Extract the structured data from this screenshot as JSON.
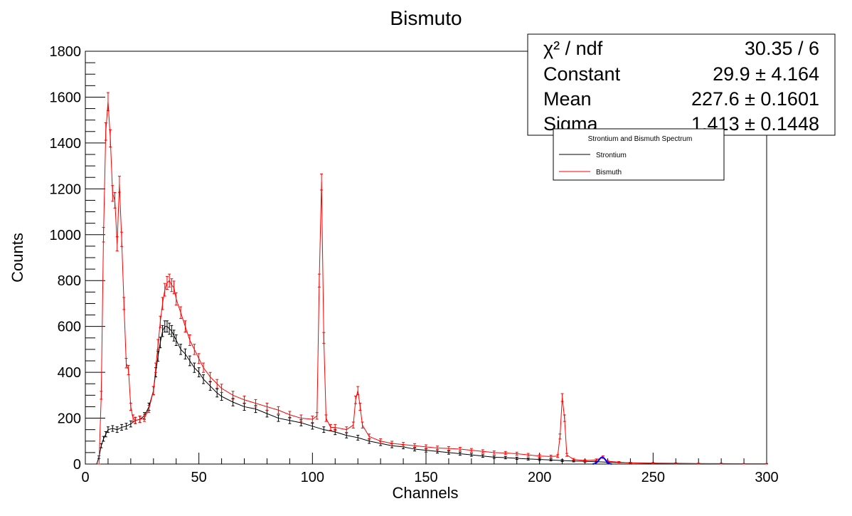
{
  "chart_data": {
    "type": "line",
    "title": "Bismuto",
    "xlabel": "Channels",
    "ylabel": "Counts",
    "xlim": [
      0,
      300
    ],
    "ylim": [
      0,
      1800
    ],
    "x_ticks": [
      "0",
      "50",
      "100",
      "150",
      "200",
      "250",
      "300"
    ],
    "y_ticks": [
      "0",
      "200",
      "400",
      "600",
      "800",
      "1000",
      "1200",
      "1400",
      "1600",
      "1800"
    ],
    "grid": false,
    "legend": {
      "title": "Strontium and Bismuth Spectrum",
      "position": "top-right",
      "entries": [
        {
          "label": "Strontium",
          "color": "#000000"
        },
        {
          "label": "Bismuth",
          "color": "#ff0000"
        }
      ]
    },
    "stats": {
      "rows": [
        {
          "label": "χ² / ndf",
          "value": "30.35 / 6"
        },
        {
          "label": "Constant",
          "value": "29.9 ± 4.164"
        },
        {
          "label": "Mean",
          "value": "227.6 ± 0.1601"
        },
        {
          "label": "Sigma",
          "value": "1.413 ± 0.1448"
        }
      ]
    },
    "series": [
      {
        "name": "Strontium",
        "color": "#000000",
        "points": [
          [
            5,
            0
          ],
          [
            6,
            30
          ],
          [
            7,
            80
          ],
          [
            8,
            110
          ],
          [
            9,
            130
          ],
          [
            10,
            150
          ],
          [
            12,
            155
          ],
          [
            14,
            150
          ],
          [
            16,
            160
          ],
          [
            18,
            165
          ],
          [
            20,
            175
          ],
          [
            22,
            190
          ],
          [
            24,
            195
          ],
          [
            26,
            210
          ],
          [
            28,
            250
          ],
          [
            30,
            320
          ],
          [
            31,
            400
          ],
          [
            32,
            470
          ],
          [
            33,
            530
          ],
          [
            34,
            580
          ],
          [
            35,
            600
          ],
          [
            36,
            600
          ],
          [
            37,
            590
          ],
          [
            38,
            580
          ],
          [
            39,
            560
          ],
          [
            40,
            540
          ],
          [
            42,
            500
          ],
          [
            44,
            480
          ],
          [
            46,
            450
          ],
          [
            48,
            420
          ],
          [
            50,
            400
          ],
          [
            52,
            370
          ],
          [
            55,
            340
          ],
          [
            58,
            310
          ],
          [
            60,
            295
          ],
          [
            65,
            270
          ],
          [
            70,
            250
          ],
          [
            75,
            240
          ],
          [
            80,
            220
          ],
          [
            85,
            200
          ],
          [
            90,
            190
          ],
          [
            95,
            180
          ],
          [
            100,
            165
          ],
          [
            105,
            150
          ],
          [
            110,
            140
          ],
          [
            115,
            125
          ],
          [
            120,
            115
          ],
          [
            125,
            100
          ],
          [
            130,
            90
          ],
          [
            135,
            80
          ],
          [
            140,
            75
          ],
          [
            145,
            65
          ],
          [
            150,
            60
          ],
          [
            155,
            55
          ],
          [
            160,
            50
          ],
          [
            165,
            45
          ],
          [
            170,
            40
          ],
          [
            175,
            35
          ],
          [
            180,
            30
          ],
          [
            185,
            28
          ],
          [
            190,
            25
          ],
          [
            195,
            22
          ],
          [
            200,
            20
          ],
          [
            205,
            18
          ],
          [
            210,
            15
          ],
          [
            215,
            13
          ],
          [
            220,
            12
          ],
          [
            225,
            10
          ],
          [
            230,
            8
          ],
          [
            240,
            5
          ],
          [
            250,
            4
          ],
          [
            260,
            3
          ],
          [
            270,
            2
          ],
          [
            280,
            2
          ],
          [
            290,
            1
          ],
          [
            300,
            1
          ]
        ]
      },
      {
        "name": "Bismuth",
        "color": "#ff0000",
        "points": [
          [
            6,
            0
          ],
          [
            7,
            300
          ],
          [
            8,
            1000
          ],
          [
            9,
            1450
          ],
          [
            10,
            1580
          ],
          [
            11,
            1420
          ],
          [
            12,
            1180
          ],
          [
            13,
            1150
          ],
          [
            14,
            960
          ],
          [
            15,
            1220
          ],
          [
            16,
            980
          ],
          [
            17,
            700
          ],
          [
            18,
            440
          ],
          [
            19,
            410
          ],
          [
            20,
            250
          ],
          [
            21,
            200
          ],
          [
            22,
            190
          ],
          [
            24,
            195
          ],
          [
            26,
            200
          ],
          [
            28,
            240
          ],
          [
            30,
            320
          ],
          [
            31,
            420
          ],
          [
            32,
            520
          ],
          [
            33,
            620
          ],
          [
            34,
            700
          ],
          [
            35,
            760
          ],
          [
            36,
            790
          ],
          [
            37,
            800
          ],
          [
            38,
            780
          ],
          [
            39,
            770
          ],
          [
            40,
            720
          ],
          [
            42,
            660
          ],
          [
            44,
            600
          ],
          [
            46,
            540
          ],
          [
            48,
            500
          ],
          [
            50,
            460
          ],
          [
            52,
            420
          ],
          [
            55,
            380
          ],
          [
            58,
            350
          ],
          [
            60,
            330
          ],
          [
            65,
            300
          ],
          [
            70,
            280
          ],
          [
            75,
            265
          ],
          [
            80,
            250
          ],
          [
            85,
            235
          ],
          [
            90,
            215
          ],
          [
            95,
            200
          ],
          [
            100,
            195
          ],
          [
            102,
            210
          ],
          [
            103,
            800
          ],
          [
            104,
            1230
          ],
          [
            105,
            550
          ],
          [
            106,
            200
          ],
          [
            108,
            160
          ],
          [
            110,
            160
          ],
          [
            115,
            150
          ],
          [
            118,
            170
          ],
          [
            119,
            280
          ],
          [
            120,
            320
          ],
          [
            121,
            250
          ],
          [
            122,
            170
          ],
          [
            125,
            120
          ],
          [
            130,
            100
          ],
          [
            135,
            90
          ],
          [
            140,
            85
          ],
          [
            145,
            80
          ],
          [
            150,
            75
          ],
          [
            155,
            70
          ],
          [
            160,
            68
          ],
          [
            165,
            65
          ],
          [
            170,
            60
          ],
          [
            175,
            55
          ],
          [
            180,
            50
          ],
          [
            185,
            48
          ],
          [
            190,
            45
          ],
          [
            195,
            40
          ],
          [
            200,
            35
          ],
          [
            205,
            33
          ],
          [
            208,
            35
          ],
          [
            209,
            120
          ],
          [
            210,
            290
          ],
          [
            211,
            200
          ],
          [
            212,
            40
          ],
          [
            215,
            20
          ],
          [
            220,
            15
          ],
          [
            225,
            18
          ],
          [
            228,
            30
          ],
          [
            230,
            12
          ],
          [
            235,
            8
          ],
          [
            240,
            5
          ],
          [
            250,
            3
          ],
          [
            260,
            2
          ],
          [
            270,
            2
          ],
          [
            280,
            1
          ],
          [
            290,
            1
          ],
          [
            300,
            1
          ]
        ]
      }
    ],
    "fit": {
      "name": "Gaussian fit",
      "color": "#0000ff",
      "constant": 29.9,
      "mean": 227.6,
      "sigma": 1.413
    }
  }
}
